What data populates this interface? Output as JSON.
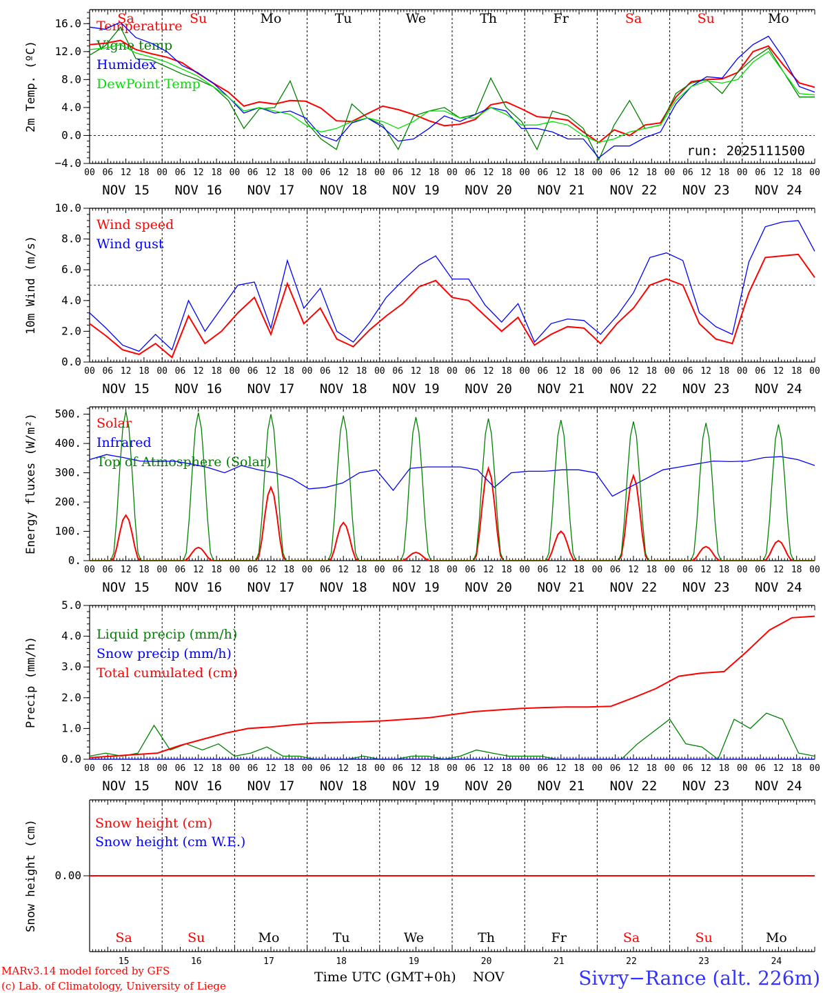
{
  "colors": {
    "red": "#ff0000",
    "green": "#008000",
    "blue": "#0000ff",
    "lightgreen": "#00e000",
    "black": "#000000"
  },
  "days": {
    "dow": [
      "Sa",
      "Su",
      "Mo",
      "Tu",
      "We",
      "Th",
      "Fr",
      "Sa",
      "Su",
      "Mo"
    ],
    "weekend": [
      true,
      true,
      false,
      false,
      false,
      false,
      false,
      true,
      true,
      false
    ],
    "dates": [
      "NOV 15",
      "NOV 16",
      "NOV 17",
      "NOV 18",
      "NOV 19",
      "NOV 20",
      "NOV 21",
      "NOV 22",
      "NOV 23",
      "NOV 24"
    ],
    "day_numbers": [
      "15",
      "16",
      "17",
      "18",
      "19",
      "20",
      "21",
      "22",
      "23",
      "24"
    ],
    "hour_labels": [
      "00",
      "06",
      "12",
      "18"
    ],
    "final_hour_label": "00"
  },
  "footer": {
    "model": "MARv3.14 model forced by GFS",
    "lab": "(c) Lab. of Climatology, University of Liege",
    "time_axis": "Time UTC (GMT+0h)",
    "month": "NOV",
    "location": "Sivry−Rance (alt. 226m)"
  },
  "chart_data": [
    {
      "type": "line",
      "id": "temp",
      "ylabel": "2m Temp. (ºC)",
      "ylim": [
        -4,
        18
      ],
      "yticks": [
        -4,
        0,
        4,
        8,
        12,
        16
      ],
      "ytick_labels": [
        "−4.0",
        "0.0",
        "4.0",
        "8.0",
        "12.0",
        "16.0"
      ],
      "reference_line": 0,
      "annotation": "run: 2025111500",
      "series": [
        {
          "name": "Temperature",
          "color": "red",
          "values": [
            13.0,
            13.2,
            13.6,
            12.3,
            11.7,
            11.2,
            10.4,
            8.9,
            7.5,
            6.2,
            4.2,
            4.8,
            4.5,
            5.0,
            4.9,
            3.9,
            2.1,
            2.0,
            3.1,
            4.2,
            3.7,
            3.0,
            2.1,
            1.4,
            1.6,
            2.3,
            4.4,
            4.8,
            3.8,
            2.7,
            2.5,
            2.2,
            0.5,
            -1.0,
            0.8,
            0.0,
            1.5,
            1.8,
            5.5,
            7.7,
            8.0,
            8.1,
            9.0,
            12.0,
            12.8,
            10.0,
            7.5,
            6.9
          ]
        },
        {
          "name": "Vigne temp",
          "color": "green",
          "values": [
            11.5,
            12.8,
            15.5,
            11.0,
            10.8,
            9.8,
            8.8,
            8.0,
            7.0,
            5.0,
            1.0,
            3.8,
            4.0,
            7.8,
            2.0,
            -0.5,
            -2.0,
            4.5,
            2.5,
            1.5,
            -2.0,
            2.8,
            3.5,
            4.0,
            2.5,
            3.0,
            8.2,
            4.0,
            2.0,
            -2.0,
            3.5,
            2.8,
            1.0,
            -3.5,
            1.5,
            5.0,
            1.0,
            1.5,
            6.0,
            7.5,
            8.0,
            6.0,
            9.0,
            11.0,
            12.5,
            9.0,
            5.5,
            5.5
          ]
        },
        {
          "name": "Humidex",
          "color": "blue",
          "values": [
            15.5,
            15.2,
            16.2,
            14.0,
            13.2,
            12.0,
            10.0,
            9.0,
            7.5,
            5.5,
            3.2,
            4.0,
            3.2,
            3.5,
            2.5,
            0.0,
            -0.8,
            1.8,
            2.5,
            1.2,
            -0.8,
            -0.5,
            1.0,
            2.8,
            2.0,
            3.0,
            4.0,
            3.5,
            1.0,
            1.0,
            0.5,
            -0.5,
            -0.5,
            -3.2,
            -1.5,
            -1.5,
            -0.3,
            0.5,
            4.5,
            7.0,
            8.4,
            8.2,
            11.0,
            13.0,
            14.2,
            11.0,
            7.0,
            6.2
          ]
        },
        {
          "name": "DewPoint Temp",
          "color": "lightgreen",
          "values": [
            12.3,
            12.5,
            13.0,
            11.8,
            11.2,
            10.5,
            9.5,
            8.5,
            7.0,
            5.5,
            3.5,
            4.0,
            3.5,
            3.0,
            1.5,
            0.5,
            1.0,
            2.0,
            2.5,
            2.0,
            1.0,
            2.0,
            3.5,
            3.5,
            2.5,
            2.5,
            4.0,
            3.0,
            1.5,
            1.5,
            2.0,
            1.5,
            0.0,
            -1.0,
            -0.5,
            0.5,
            1.0,
            1.5,
            5.0,
            7.0,
            7.8,
            7.5,
            8.0,
            10.5,
            12.0,
            9.0,
            6.0,
            5.8
          ]
        }
      ]
    },
    {
      "type": "line",
      "id": "wind",
      "ylabel": "10m Wind (m/s)",
      "ylim": [
        0,
        10
      ],
      "yticks": [
        0,
        2,
        4,
        6,
        8,
        10
      ],
      "ytick_labels": [
        "0.0",
        "2.0",
        "4.0",
        "6.0",
        "8.0",
        "10.0"
      ],
      "reference_line": 5,
      "series": [
        {
          "name": "Wind speed",
          "color": "red",
          "values": [
            2.5,
            1.7,
            0.8,
            0.5,
            1.2,
            0.3,
            3.0,
            1.2,
            2.0,
            3.2,
            4.2,
            1.8,
            5.1,
            2.5,
            3.5,
            1.5,
            1.0,
            2.1,
            3.0,
            3.8,
            4.9,
            5.3,
            4.2,
            4.0,
            3.0,
            2.0,
            2.9,
            1.1,
            1.8,
            2.3,
            2.2,
            1.2,
            2.5,
            3.5,
            5.0,
            5.4,
            5.0,
            2.5,
            1.5,
            1.2,
            4.5,
            6.8,
            6.9,
            7.0,
            5.5
          ]
        },
        {
          "name": "Wind gust",
          "color": "blue",
          "values": [
            3.2,
            2.2,
            1.1,
            0.7,
            1.8,
            0.8,
            4.0,
            2.0,
            3.5,
            5.0,
            5.2,
            2.2,
            6.6,
            3.5,
            4.8,
            2.0,
            1.3,
            2.6,
            4.2,
            5.3,
            6.3,
            6.9,
            5.4,
            5.4,
            3.7,
            2.6,
            3.8,
            1.3,
            2.5,
            2.8,
            2.7,
            1.8,
            3.0,
            4.5,
            6.8,
            7.1,
            6.6,
            3.2,
            2.3,
            1.8,
            6.5,
            8.8,
            9.1,
            9.2,
            7.2
          ]
        }
      ]
    },
    {
      "type": "line",
      "id": "energy",
      "ylabel": "Energy fluxes (W/m²)",
      "ylim": [
        0,
        525
      ],
      "yticks": [
        0,
        100,
        200,
        300,
        400,
        500
      ],
      "ytick_labels": [
        "0.",
        "100.",
        "200.",
        "300.",
        "400.",
        "500."
      ],
      "daily_solar_peaks": [
        155,
        45,
        250,
        130,
        28,
        315,
        100,
        290,
        48,
        68
      ],
      "daily_toa_peaks": [
        510,
        505,
        500,
        495,
        490,
        485,
        480,
        475,
        470,
        465
      ],
      "series": [
        {
          "name": "Solar",
          "color": "red"
        },
        {
          "name": "Infrared",
          "color": "blue",
          "values": [
            345,
            362,
            352,
            340,
            338,
            340,
            330,
            318,
            300,
            325,
            310,
            300,
            280,
            245,
            250,
            265,
            300,
            310,
            240,
            315,
            320,
            320,
            320,
            310,
            250,
            300,
            305,
            305,
            310,
            310,
            300,
            220,
            250,
            280,
            310,
            320,
            330,
            340,
            338,
            340,
            352,
            355,
            345,
            325
          ]
        },
        {
          "name": "Top of Atmosphere (Solar)",
          "color": "green"
        }
      ]
    },
    {
      "type": "line",
      "id": "precip",
      "ylabel": "Precip (mm/h)",
      "ylim": [
        0,
        5
      ],
      "yticks": [
        0,
        1,
        2,
        3,
        4,
        5
      ],
      "ytick_labels": [
        "0.0",
        "1.0",
        "2.0",
        "3.0",
        "4.0",
        "5.0"
      ],
      "series": [
        {
          "name": "Liquid precip (mm/h)",
          "color": "green",
          "values": [
            0.1,
            0.2,
            0.1,
            0.2,
            1.1,
            0.3,
            0.5,
            0.3,
            0.5,
            0.1,
            0.2,
            0.4,
            0.1,
            0.1,
            0.0,
            0.0,
            0.0,
            0.1,
            0.0,
            0.0,
            0.1,
            0.1,
            0.0,
            0.1,
            0.3,
            0.2,
            0.1,
            0.1,
            0.1,
            0.0,
            0.0,
            0.0,
            0.0,
            0.0,
            0.5,
            0.9,
            1.3,
            0.5,
            0.4,
            0.0,
            1.3,
            1.0,
            1.5,
            1.3,
            0.2,
            0.1
          ]
        },
        {
          "name": "Snow precip (mm/h)",
          "color": "blue",
          "values": [
            0.0,
            0.0,
            0.0,
            0.0,
            0.0,
            0.0,
            0.0,
            0.0,
            0.0,
            0.0,
            0.0,
            0.0,
            0.0,
            0.0,
            0.0,
            0.0,
            0.0,
            0.0,
            0.0,
            0.0,
            0.0,
            0.0,
            0.0,
            0.0,
            0.0,
            0.0,
            0.0,
            0.0,
            0.0,
            0.0,
            0.0,
            0.0,
            0.0,
            0.0,
            0.0,
            0.0,
            0.0,
            0.0,
            0.0,
            0.0,
            0.0,
            0.0,
            0.0,
            0.0,
            0.0,
            0.0
          ]
        },
        {
          "name": "Total cumulated (cm)",
          "color": "red",
          "values": [
            0.05,
            0.1,
            0.15,
            0.2,
            0.45,
            0.65,
            0.85,
            1.0,
            1.05,
            1.12,
            1.18,
            1.2,
            1.22,
            1.25,
            1.3,
            1.35,
            1.45,
            1.55,
            1.6,
            1.65,
            1.68,
            1.7,
            1.7,
            1.72,
            2.0,
            2.3,
            2.7,
            2.8,
            2.85,
            3.5,
            4.2,
            4.6,
            4.65
          ]
        }
      ]
    },
    {
      "type": "line",
      "id": "snow",
      "ylabel": "Snow height (cm)",
      "ylim": [
        -1,
        1
      ],
      "yticks": [
        0
      ],
      "ytick_labels": [
        "0.00"
      ],
      "series": [
        {
          "name": "Snow height (cm)",
          "color": "red",
          "values": [
            0,
            0
          ]
        },
        {
          "name": "Snow height (cm W.E.)",
          "color": "blue"
        }
      ]
    }
  ]
}
